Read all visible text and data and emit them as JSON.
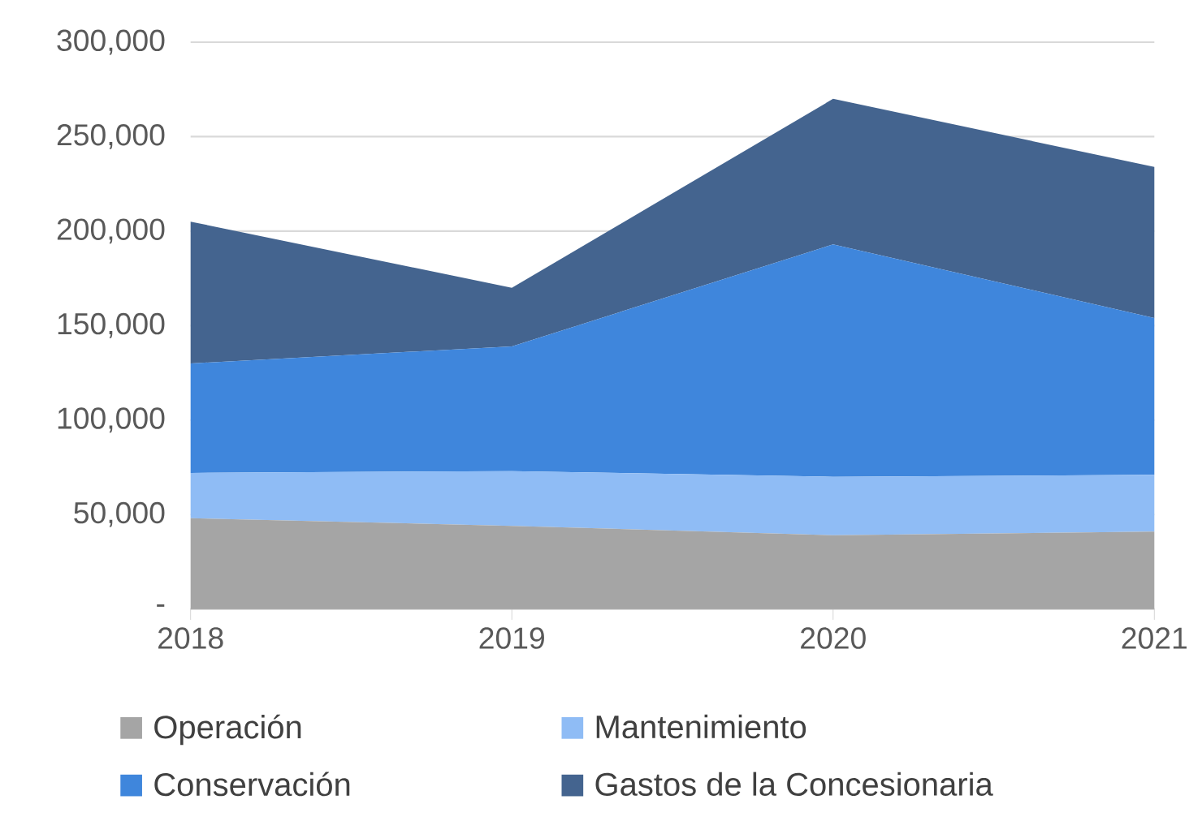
{
  "chart_data": {
    "type": "area",
    "stacked": true,
    "categories": [
      "2018",
      "2019",
      "2020",
      "2021"
    ],
    "series": [
      {
        "name": "Operación",
        "color": "#a5a5a5",
        "values": [
          48000,
          44000,
          39000,
          41000
        ]
      },
      {
        "name": "Mantenimiento",
        "color": "#8fbcf5",
        "values": [
          24000,
          29000,
          31000,
          30000
        ]
      },
      {
        "name": "Conservación",
        "color": "#3f86dc",
        "values": [
          58000,
          66000,
          123000,
          83000
        ]
      },
      {
        "name": "Gastos de la Concesionaria",
        "color": "#44648f",
        "values": [
          75000,
          31000,
          77000,
          80000
        ]
      }
    ],
    "ylim": [
      0,
      300000
    ],
    "yticks": [
      {
        "value": 0,
        "label": "-"
      },
      {
        "value": 50000,
        "label": "50,000"
      },
      {
        "value": 100000,
        "label": "100,000"
      },
      {
        "value": 150000,
        "label": "150,000"
      },
      {
        "value": 200000,
        "label": "200,000"
      },
      {
        "value": 250000,
        "label": "250,000"
      },
      {
        "value": 300000,
        "label": "300,000"
      }
    ],
    "grid": "y",
    "legend": "bottom",
    "marker": "none"
  }
}
